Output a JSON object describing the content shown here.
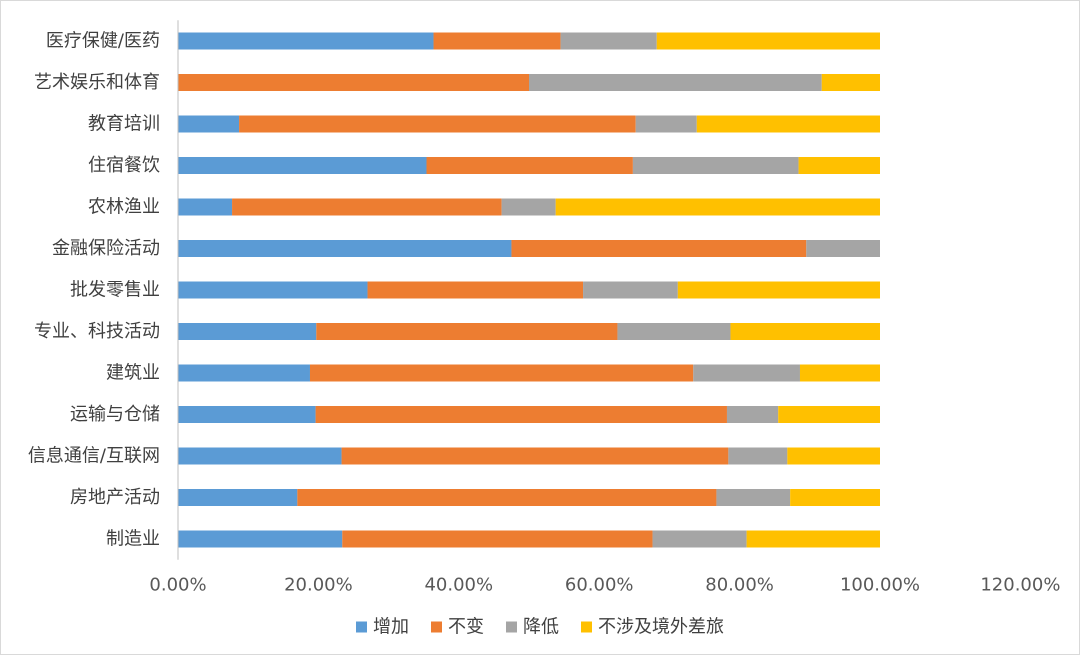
{
  "chart_data": {
    "type": "bar",
    "orientation": "horizontal",
    "stacked": true,
    "title": "",
    "xlabel": "",
    "ylabel": "",
    "xlim": [
      0,
      1.2
    ],
    "x_ticks": [
      "0.00%",
      "20.00%",
      "40.00%",
      "60.00%",
      "80.00%",
      "100.00%",
      "120.00%"
    ],
    "grid": false,
    "legend_position": "bottom",
    "categories": [
      "医疗保健/医药",
      "艺术娱乐和体育",
      "教育培训",
      "住宿餐饮",
      "农林渔业",
      "金融保险活动",
      "批发零售业",
      "专业、科技活动",
      "建筑业",
      "运输与仓储",
      "信息通信/互联网",
      "房地产活动",
      "制造业"
    ],
    "series": [
      {
        "name": "增加",
        "color": "#5b9bd5",
        "values": [
          0.364,
          0.0,
          0.087,
          0.354,
          0.077,
          0.475,
          0.27,
          0.197,
          0.188,
          0.196,
          0.233,
          0.17,
          0.234
        ]
      },
      {
        "name": "不变",
        "color": "#ed7d31",
        "values": [
          0.181,
          0.5,
          0.565,
          0.294,
          0.384,
          0.42,
          0.307,
          0.429,
          0.546,
          0.586,
          0.551,
          0.597,
          0.442
        ]
      },
      {
        "name": "降低",
        "color": "#a5a5a5",
        "values": [
          0.137,
          0.417,
          0.087,
          0.236,
          0.077,
          0.105,
          0.135,
          0.161,
          0.152,
          0.073,
          0.084,
          0.105,
          0.134
        ]
      },
      {
        "name": "不涉及境外差旅",
        "color": "#ffc000",
        "values": [
          0.318,
          0.083,
          0.261,
          0.116,
          0.462,
          0.0,
          0.288,
          0.213,
          0.114,
          0.145,
          0.132,
          0.128,
          0.19
        ]
      }
    ]
  }
}
